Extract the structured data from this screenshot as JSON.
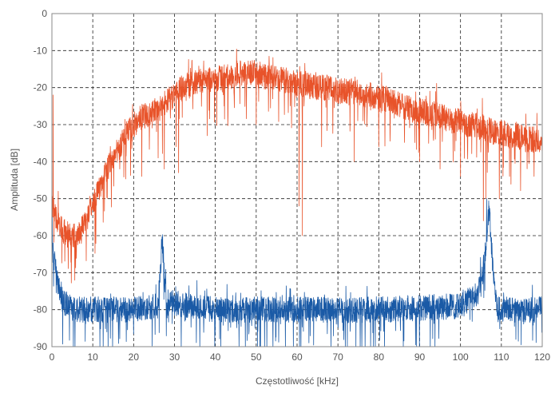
{
  "chart_data": {
    "type": "line",
    "xlabel": "Częstotliwość [kHz]",
    "ylabel": "Amplituda [dB]",
    "xlim": [
      0,
      120
    ],
    "ylim": [
      -90,
      0
    ],
    "x_ticks": [
      "0",
      "10",
      "20",
      "30",
      "40",
      "50",
      "60",
      "70",
      "80",
      "90",
      "100",
      "110",
      "120"
    ],
    "y_ticks": [
      "0",
      "-10",
      "-20",
      "-30",
      "-40",
      "-50",
      "-60",
      "-70",
      "-80",
      "-90"
    ],
    "grid": true,
    "series": [
      {
        "color": "#e8532a",
        "x": [
          0,
          1,
          2,
          3,
          4,
          5,
          6,
          7,
          8,
          9,
          10,
          11,
          12,
          13,
          14,
          15,
          16,
          17,
          18,
          19,
          20,
          22,
          24,
          26,
          28,
          30,
          32,
          34,
          36,
          38,
          40,
          42,
          44,
          46,
          48,
          50,
          52,
          54,
          56,
          58,
          60,
          62,
          64,
          66,
          68,
          70,
          72,
          74,
          76,
          78,
          80,
          82,
          84,
          86,
          88,
          90,
          92,
          94,
          96,
          98,
          100,
          102,
          104,
          106,
          108,
          110,
          112,
          114,
          116,
          118,
          120
        ],
        "values": [
          -51,
          -55,
          -57,
          -59,
          -60,
          -60,
          -60,
          -59,
          -57,
          -55,
          -52,
          -49,
          -46,
          -43,
          -41,
          -39,
          -37,
          -35,
          -33,
          -31,
          -30,
          -28,
          -27,
          -26,
          -24,
          -22,
          -20,
          -19,
          -18,
          -18,
          -18,
          -17,
          -17,
          -16,
          -16,
          -16,
          -17,
          -17,
          -18,
          -18,
          -19,
          -19,
          -20,
          -20,
          -20,
          -21,
          -21,
          -21,
          -22,
          -22,
          -23,
          -23,
          -24,
          -25,
          -26,
          -26,
          -27,
          -27,
          -28,
          -29,
          -29,
          -30,
          -30,
          -31,
          -32,
          -32,
          -33,
          -33,
          -34,
          -34,
          -34
        ],
        "spikes": [
          [
            0.3,
            -22
          ],
          [
            22,
            -44
          ],
          [
            26,
            -39
          ],
          [
            27.5,
            -42
          ],
          [
            31,
            -43
          ],
          [
            38,
            -33
          ],
          [
            50,
            -30
          ],
          [
            60.5,
            -52
          ],
          [
            61.3,
            -60
          ],
          [
            66,
            -36
          ],
          [
            74,
            -40
          ],
          [
            80,
            -36
          ],
          [
            90,
            -40
          ],
          [
            95,
            -42
          ],
          [
            100,
            -44
          ],
          [
            105.6,
            -56
          ],
          [
            106.2,
            -50
          ],
          [
            109.5,
            -50
          ],
          [
            112,
            -44
          ],
          [
            118,
            -44
          ]
        ]
      },
      {
        "color": "#1a5aa6",
        "x": [
          0,
          0.5,
          1,
          1.5,
          2,
          3,
          4,
          5,
          10,
          20,
          26,
          27,
          28,
          40,
          60,
          80,
          100,
          104,
          105,
          106,
          107,
          108,
          109,
          110,
          120
        ],
        "values": [
          -62,
          -66,
          -70,
          -73,
          -76,
          -78,
          -79,
          -80,
          -80,
          -80,
          -79,
          -61,
          -78,
          -80,
          -80,
          -80,
          -79,
          -76,
          -73,
          -66,
          -52,
          -70,
          -80,
          -80,
          -80
        ],
        "spikes": [
          [
            0.1,
            -55
          ],
          [
            0.3,
            -62
          ],
          [
            26.8,
            -61
          ],
          [
            27.3,
            -63
          ],
          [
            106.4,
            -50
          ],
          [
            107,
            -52
          ]
        ]
      }
    ]
  }
}
